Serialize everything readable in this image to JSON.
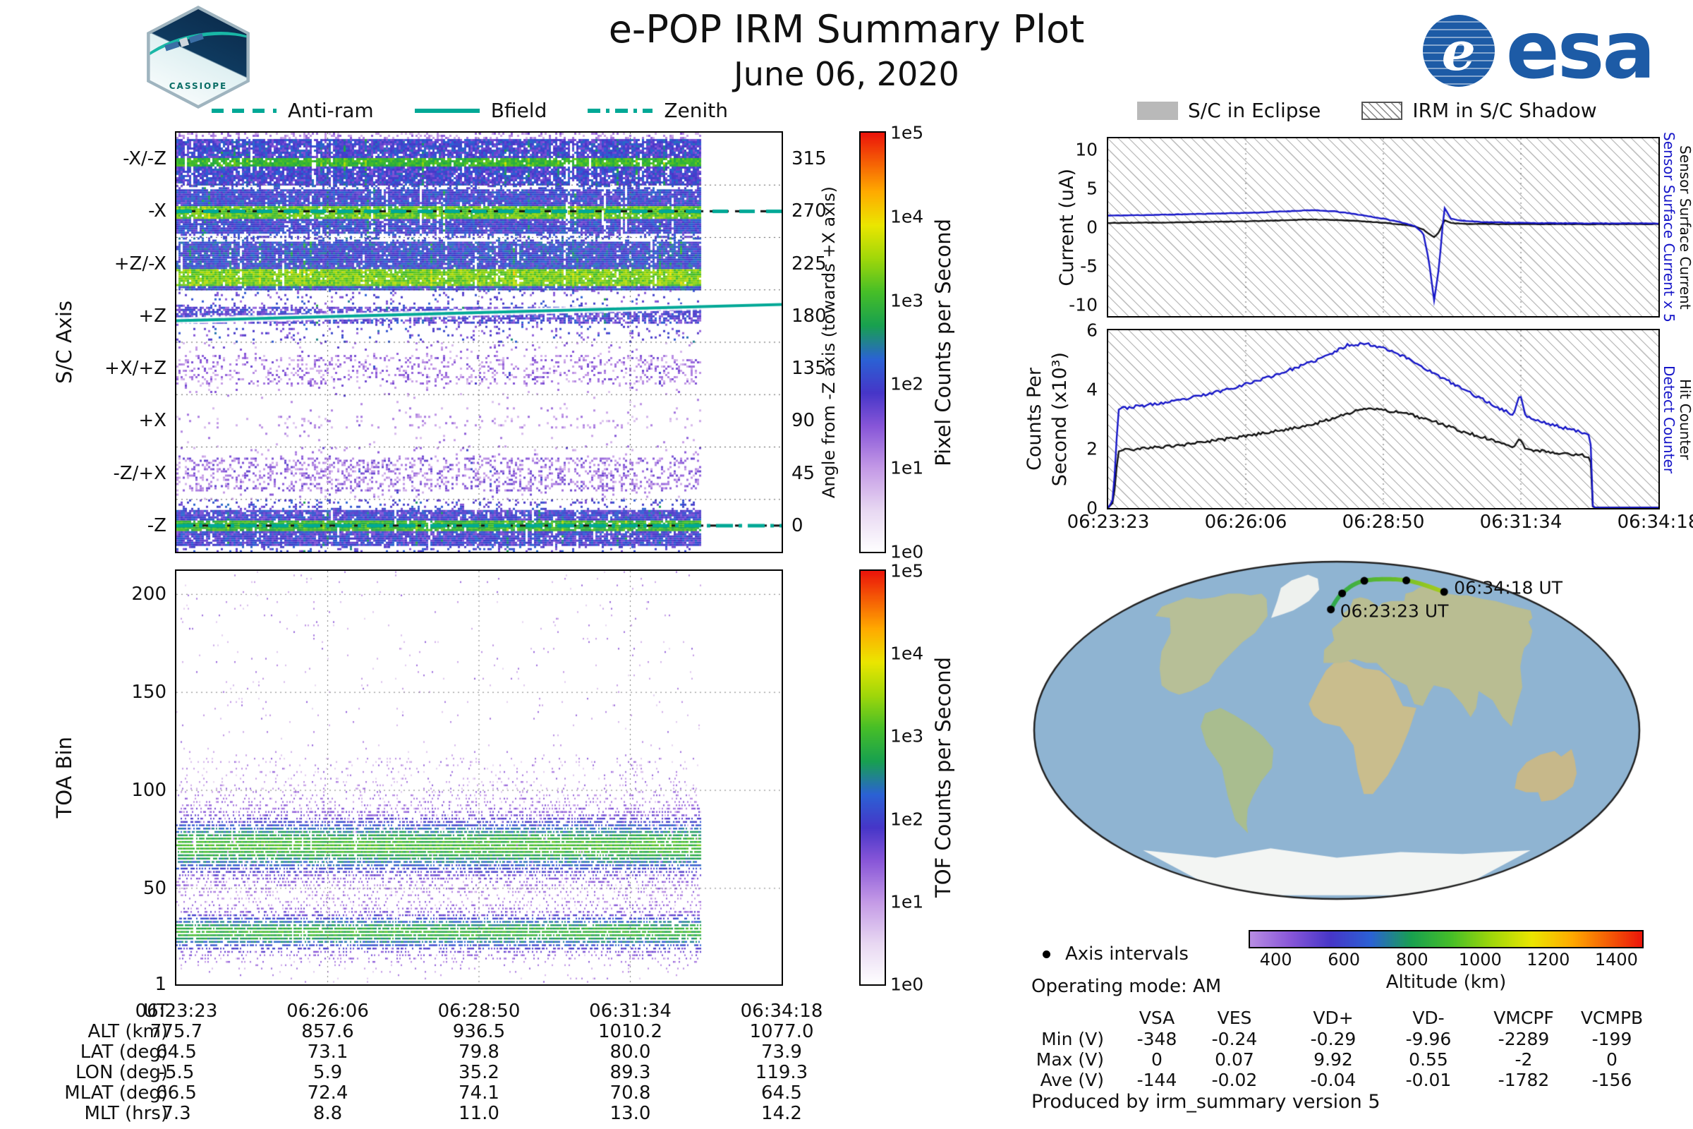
{
  "header": {
    "title": "e-POP IRM Summary Plot",
    "date": "June 06, 2020",
    "esa_wordmark": "esa",
    "patch_label": "CASSIOPE"
  },
  "colors": {
    "teal": "#00a896",
    "blue_line": "#1515c8",
    "black_line": "#111111",
    "esa_blue": "#1d5ba6",
    "track_green_start": "#2da84e",
    "track_green_end": "#a9cc1e"
  },
  "left_legend": [
    {
      "label": "Anti-ram",
      "style": "dashed"
    },
    {
      "label": "Bfield",
      "style": "solid"
    },
    {
      "label": "Zenith",
      "style": "dashdot"
    }
  ],
  "right_legend": [
    {
      "label": "S/C in Eclipse",
      "swatch": "eclipse"
    },
    {
      "label": "IRM in S/C Shadow",
      "swatch": "shadow"
    }
  ],
  "time_ticks": [
    "06:23:23",
    "06:26:06",
    "06:28:50",
    "06:31:34",
    "06:34:18"
  ],
  "chart_data": [
    {
      "id": "sc_axis_spectrogram",
      "type": "heatmap",
      "ylabel": "S/C Axis",
      "y_categories": [
        "-X/-Z",
        "-X",
        "+Z/-X",
        "+Z",
        "+X/+Z",
        "+X",
        "-Z/+X",
        "-Z"
      ],
      "right_axis_label": "Angle from -Z axis (towards +X axis)",
      "right_ticks": [
        "315",
        "270",
        "225",
        "180",
        "135",
        "90",
        "45",
        "0"
      ],
      "colorbar_label": "Pixel Counts per Second",
      "colorbar_ticks": [
        "1e5",
        "1e4",
        "1e3",
        "1e2",
        "1e1",
        "1e0"
      ],
      "x_ticks": [
        "06:23:23",
        "06:26:06",
        "06:28:50",
        "06:31:34",
        "06:34:18"
      ],
      "data_end_fraction": 0.865,
      "overlays": [
        {
          "name": "Anti-ram",
          "style": "dashed",
          "angle_deg": 270
        },
        {
          "name": "Bfield",
          "style": "solid",
          "angle_start_deg": 176,
          "angle_end_deg": 190
        },
        {
          "name": "Zenith",
          "style": "dashdot",
          "angle_deg": 0
        }
      ]
    },
    {
      "id": "toa_spectrogram",
      "type": "heatmap",
      "ylabel": "TOA Bin",
      "y_ticks": [
        "200",
        "150",
        "100",
        "50",
        "1"
      ],
      "y_tick_values": [
        200,
        150,
        100,
        50,
        1
      ],
      "ylim": [
        1,
        212
      ],
      "colorbar_label": "TOF Counts per Second",
      "colorbar_ticks": [
        "1e5",
        "1e4",
        "1e3",
        "1e2",
        "1e1",
        "1e0"
      ],
      "data_end_fraction": 0.865,
      "bands": [
        {
          "center_bin": 72,
          "width_bins": 14
        },
        {
          "center_bin": 28,
          "width_bins": 9
        }
      ]
    },
    {
      "id": "sensor_current",
      "type": "line",
      "ylabel": "Current (uA)",
      "ylim": [
        -11.5,
        11.5
      ],
      "y_ticks": [
        "10",
        "5",
        "0",
        "-5",
        "-10"
      ],
      "y_tick_values": [
        10,
        5,
        0,
        -5,
        -10
      ],
      "x_seconds_from_start": [
        0,
        60,
        120,
        180,
        240,
        270,
        300,
        330,
        350,
        365,
        375,
        382,
        388,
        394,
        400,
        408,
        420,
        450,
        500,
        550,
        600,
        655
      ],
      "series": [
        {
          "name": "Sensor Surface Current x 5",
          "color": "#1515c8",
          "values": [
            1.5,
            1.6,
            1.75,
            1.9,
            2.2,
            2.05,
            1.6,
            1.05,
            0.6,
            0.15,
            -0.8,
            -4.5,
            -9.5,
            -5.0,
            2.6,
            1.1,
            0.85,
            0.65,
            0.55,
            0.5,
            0.5,
            0.5
          ]
        },
        {
          "name": "Sensor Surface Current",
          "color": "#111111",
          "values": [
            0.55,
            0.6,
            0.7,
            0.8,
            1.0,
            0.95,
            0.8,
            0.55,
            0.35,
            0.1,
            -0.3,
            -0.85,
            -1.3,
            -0.6,
            0.9,
            0.55,
            0.45,
            0.42,
            0.4,
            0.4,
            0.4,
            0.4
          ]
        }
      ],
      "noise": 0.07
    },
    {
      "id": "counters",
      "type": "line",
      "ylabel_lines": [
        "Counts Per",
        "Second (x10³)"
      ],
      "ylim": [
        0,
        6
      ],
      "y_ticks": [
        "6",
        "4",
        "2",
        "0"
      ],
      "y_tick_values": [
        6,
        4,
        2,
        0
      ],
      "x_seconds_from_start": [
        0,
        6,
        12,
        40,
        80,
        120,
        160,
        200,
        240,
        265,
        285,
        305,
        330,
        360,
        390,
        420,
        450,
        470,
        483,
        490,
        497,
        510,
        530,
        550,
        565,
        574,
        577,
        600,
        655
      ],
      "series": [
        {
          "name": "Detect Counter",
          "color": "#1515c8",
          "values": [
            0,
            0.3,
            3.35,
            3.45,
            3.6,
            3.85,
            4.15,
            4.5,
            4.9,
            5.2,
            5.5,
            5.55,
            5.4,
            5.0,
            4.5,
            4.05,
            3.6,
            3.3,
            3.15,
            3.9,
            3.1,
            2.95,
            2.8,
            2.65,
            2.55,
            2.5,
            0,
            0,
            0
          ]
        },
        {
          "name": "Hit Counter",
          "color": "#111111",
          "values": [
            0,
            0.2,
            1.95,
            2.0,
            2.1,
            2.25,
            2.4,
            2.6,
            2.8,
            3.0,
            3.2,
            3.35,
            3.3,
            3.15,
            2.9,
            2.6,
            2.35,
            2.15,
            2.05,
            2.35,
            2.0,
            1.95,
            1.88,
            1.82,
            1.78,
            1.75,
            0,
            0,
            0
          ]
        }
      ],
      "noise": 0.1
    }
  ],
  "ephemeris": {
    "row_labels": [
      "UT",
      "ALT (km)",
      "LAT (deg)",
      "LON (deg)",
      "MLAT (deg)",
      "MLT (hrs)"
    ],
    "rows": [
      [
        "06:23:23",
        "06:26:06",
        "06:28:50",
        "06:31:34",
        "06:34:18"
      ],
      [
        "775.7",
        "857.6",
        "936.5",
        "1010.2",
        "1077.0"
      ],
      [
        "64.5",
        "73.1",
        "79.8",
        "80.0",
        "73.9"
      ],
      [
        "-5.5",
        "5.9",
        "35.2",
        "89.3",
        "119.3"
      ],
      [
        "66.5",
        "72.4",
        "74.1",
        "70.8",
        "64.5"
      ],
      [
        "7.3",
        "8.8",
        "11.0",
        "13.0",
        "14.2"
      ]
    ]
  },
  "map": {
    "start_label": "06:23:23 UT",
    "end_label": "06:34:18 UT",
    "track_points_lon_lat": [
      [
        -5.5,
        64.5
      ],
      [
        5.9,
        73.1
      ],
      [
        35.2,
        79.8
      ],
      [
        89.3,
        80.0
      ],
      [
        119.3,
        73.9
      ]
    ],
    "axis_intervals_label": "Axis intervals",
    "altitude_bar": {
      "label": "Altitude (km)",
      "ticks": [
        "400",
        "600",
        "800",
        "1000",
        "1200",
        "1400"
      ],
      "tick_values": [
        400,
        600,
        800,
        1000,
        1200,
        1400
      ],
      "range_km": [
        320,
        1480
      ]
    }
  },
  "status": {
    "operating_mode": "Operating mode: AM",
    "produced_by": "Produced by irm_summary version 5"
  },
  "voltage_table": {
    "columns": [
      "VSA",
      "VES",
      "VD+",
      "VD-",
      "VMCPF",
      "VCMPB"
    ],
    "rows": [
      {
        "label": "Min (V)",
        "values": [
          "-348",
          "-0.24",
          "-0.29",
          "-9.96",
          "-2289",
          "-199"
        ]
      },
      {
        "label": "Max (V)",
        "values": [
          "0",
          "0.07",
          "9.92",
          "0.55",
          "-2",
          "0"
        ]
      },
      {
        "label": "Ave (V)",
        "values": [
          "-144",
          "-0.02",
          "-0.04",
          "-0.01",
          "-1782",
          "-156"
        ]
      }
    ]
  }
}
